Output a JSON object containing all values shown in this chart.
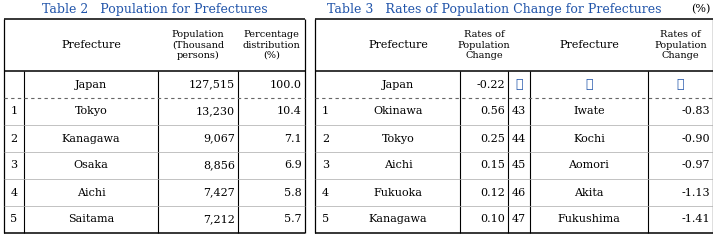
{
  "table2_title": "Table 2   Population for Prefectures",
  "table3_title": "Table 3   Rates of Population Change for Prefectures",
  "table3_unit": "(%)",
  "title_color": "#2255aa",
  "table2_rows": [
    [
      "",
      "Japan",
      "127,515",
      "100.0"
    ],
    [
      "1",
      "Tokyo",
      "13,230",
      "10.4"
    ],
    [
      "2",
      "Kanagawa",
      "9,067",
      "7.1"
    ],
    [
      "3",
      "Osaka",
      "8,856",
      "6.9"
    ],
    [
      "4",
      "Aichi",
      "7,427",
      "5.8"
    ],
    [
      "5",
      "Saitama",
      "7,212",
      "5.7"
    ]
  ],
  "table3_rows": [
    [
      "",
      "Japan",
      "-0.22",
      "⋮",
      "⋮",
      "⋮"
    ],
    [
      "1",
      "Okinawa",
      "0.56",
      "43",
      "Iwate",
      "-0.83"
    ],
    [
      "2",
      "Tokyo",
      "0.25",
      "44",
      "Kochi",
      "-0.90"
    ],
    [
      "3",
      "Aichi",
      "0.15",
      "45",
      "Aomori",
      "-0.97"
    ],
    [
      "4",
      "Fukuoka",
      "0.12",
      "46",
      "Akita",
      "-1.13"
    ],
    [
      "5",
      "Kanagawa",
      "0.10",
      "47",
      "Fukushima",
      "-1.41"
    ]
  ],
  "bg_color": "#ffffff",
  "text_color": "#000000",
  "vdot_color": "#555555"
}
